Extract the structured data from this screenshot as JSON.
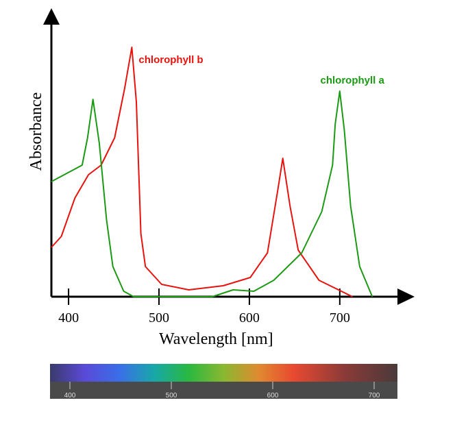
{
  "chart_data": {
    "type": "line",
    "x_label": "Wavelength [nm]",
    "y_label": "Absorbance",
    "xlim": [
      381,
      760
    ],
    "ylim": [
      0,
      1
    ],
    "xticks": [
      400,
      500,
      600,
      700
    ],
    "series": [
      {
        "name": "chlorophyll b",
        "color": "#e8120c",
        "x": [
          381,
          392,
          407,
          422,
          436,
          451,
          462,
          470,
          475,
          480,
          485,
          503,
          533,
          571,
          601,
          620,
          631,
          637,
          645,
          654,
          677,
          714
        ],
        "values": [
          0.18,
          0.22,
          0.36,
          0.445,
          0.48,
          0.58,
          0.76,
          0.91,
          0.71,
          0.23,
          0.11,
          0.045,
          0.025,
          0.04,
          0.07,
          0.16,
          0.38,
          0.505,
          0.33,
          0.17,
          0.06,
          0
        ]
      },
      {
        "name": "chlorophyll a",
        "color": "#1a9a12",
        "x": [
          381,
          415,
          421,
          427,
          434,
          442,
          449,
          461,
          472,
          559,
          582,
          605,
          627,
          658,
          680,
          692,
          695,
          700,
          705,
          712,
          722,
          736
        ],
        "values": [
          0.42,
          0.48,
          0.58,
          0.72,
          0.56,
          0.28,
          0.11,
          0.02,
          0,
          0,
          0.025,
          0.02,
          0.06,
          0.16,
          0.31,
          0.48,
          0.63,
          0.75,
          0.61,
          0.33,
          0.11,
          0
        ]
      }
    ],
    "spectrum_scale": [
      400,
      500,
      600,
      700
    ]
  }
}
